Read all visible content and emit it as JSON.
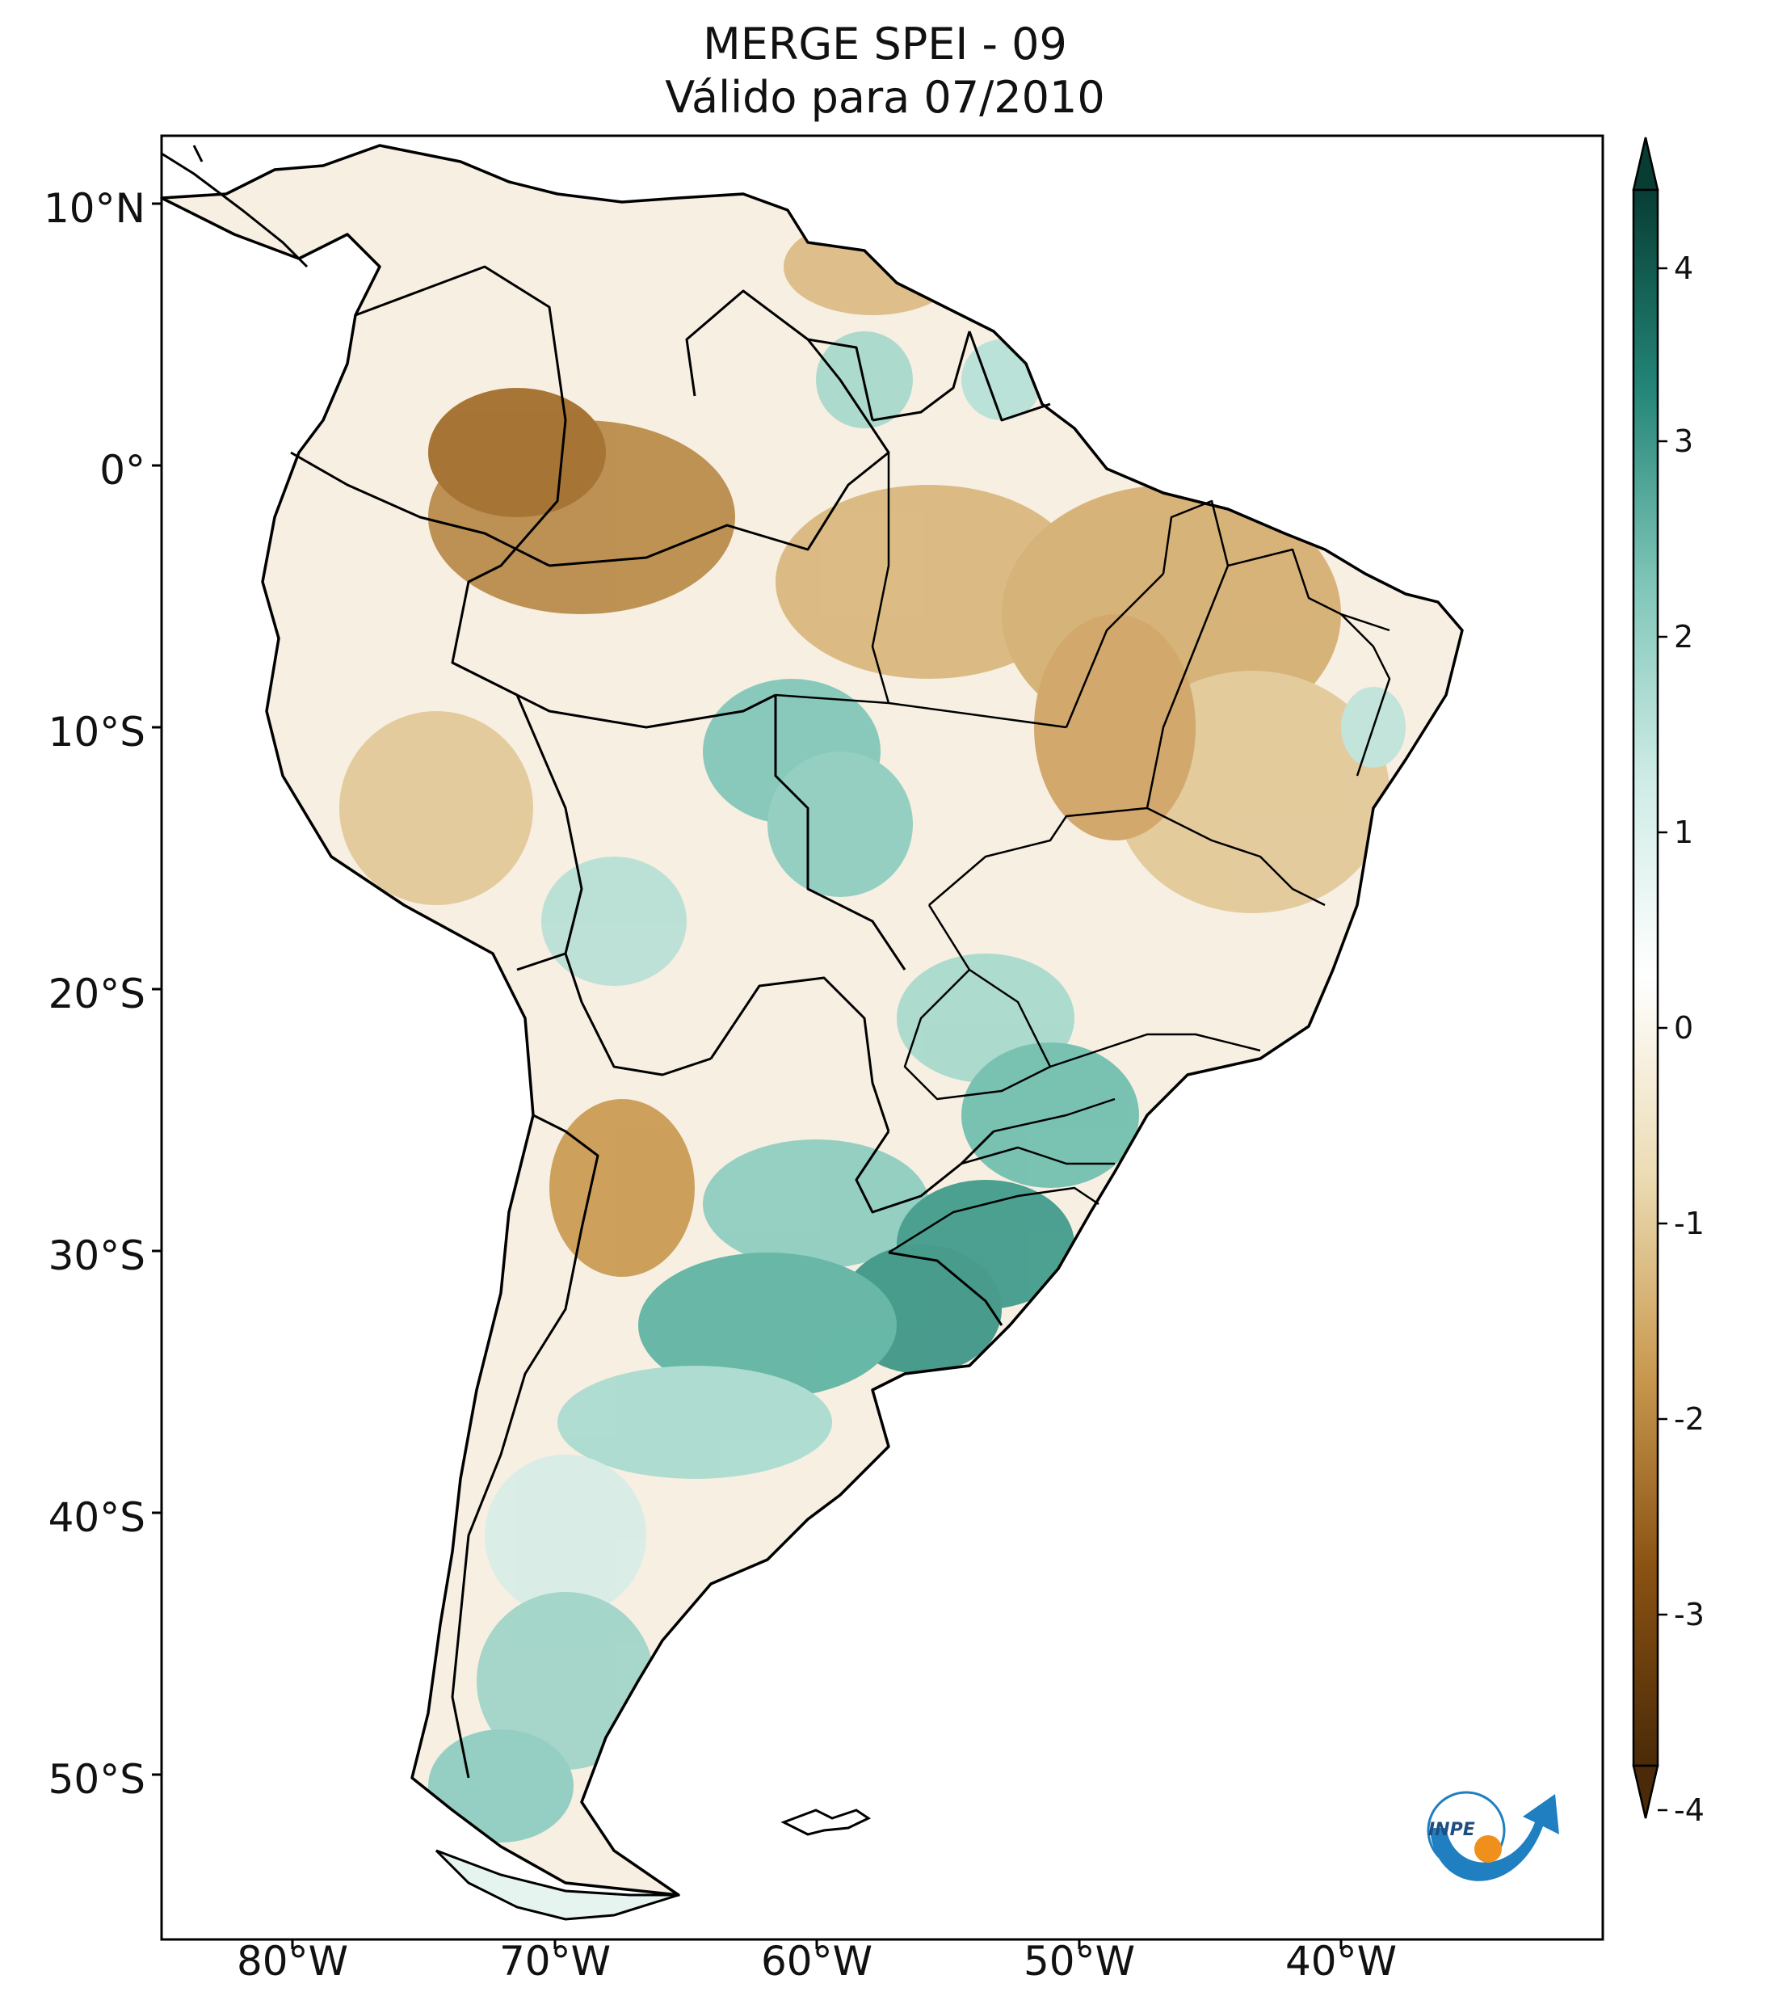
{
  "title": {
    "line1": "MERGE   SPEI - 09",
    "line2": "Válido para 07/2010"
  },
  "map": {
    "projection": "PlateCarree",
    "extent": {
      "lon_min": -85,
      "lon_max": -30,
      "lat_min": -56,
      "lat_max": 13
    },
    "lat_ticks": [
      {
        "value": 10,
        "label": "10°N"
      },
      {
        "value": 0,
        "label": "0°"
      },
      {
        "value": -10,
        "label": "10°S"
      },
      {
        "value": -20,
        "label": "20°S"
      },
      {
        "value": -30,
        "label": "30°S"
      },
      {
        "value": -40,
        "label": "40°S"
      },
      {
        "value": -50,
        "label": "50°S"
      }
    ],
    "lon_ticks": [
      {
        "value": -80,
        "label": "80°W"
      },
      {
        "value": -70,
        "label": "70°W"
      },
      {
        "value": -60,
        "label": "60°W"
      },
      {
        "value": -50,
        "label": "50°W"
      },
      {
        "value": -40,
        "label": "40°W"
      }
    ]
  },
  "colorbar": {
    "colormap": "BrBG",
    "min": -4,
    "max": 4,
    "extend": "both",
    "ticks": [
      "4",
      "3",
      "2",
      "1",
      "0",
      "-1",
      "-2",
      "-3",
      "-4"
    ],
    "colors": {
      "v-4": "#4a2a08",
      "v-3": "#8a5212",
      "v-2": "#c99a50",
      "v-1": "#ecdcb4",
      "v0": "#ffffff",
      "v1": "#cfece6",
      "v2": "#7fc6b8",
      "v3": "#238577",
      "v4": "#073d33"
    }
  },
  "logo": {
    "text": "INPE",
    "ring_color": "#1f7fc0",
    "dot_color": "#f0901c"
  },
  "regions": [
    {
      "name": "northern-amazon-dry",
      "value": -2.2
    },
    {
      "name": "pará-maranhão-dry",
      "value": -1.6
    },
    {
      "name": "northeast-brazil-dry",
      "value": -1.4
    },
    {
      "name": "guianas-wet",
      "value": 1.2
    },
    {
      "name": "mato-grosso-wet",
      "value": 1.6
    },
    {
      "name": "southern-brazil-wet",
      "value": 2.6
    },
    {
      "name": "uruguay-wet",
      "value": 2.5
    },
    {
      "name": "pampas-wet",
      "value": 2.0
    },
    {
      "name": "western-argentina-dry",
      "value": -1.6
    },
    {
      "name": "patagonia-wet",
      "value": 1.3
    }
  ]
}
